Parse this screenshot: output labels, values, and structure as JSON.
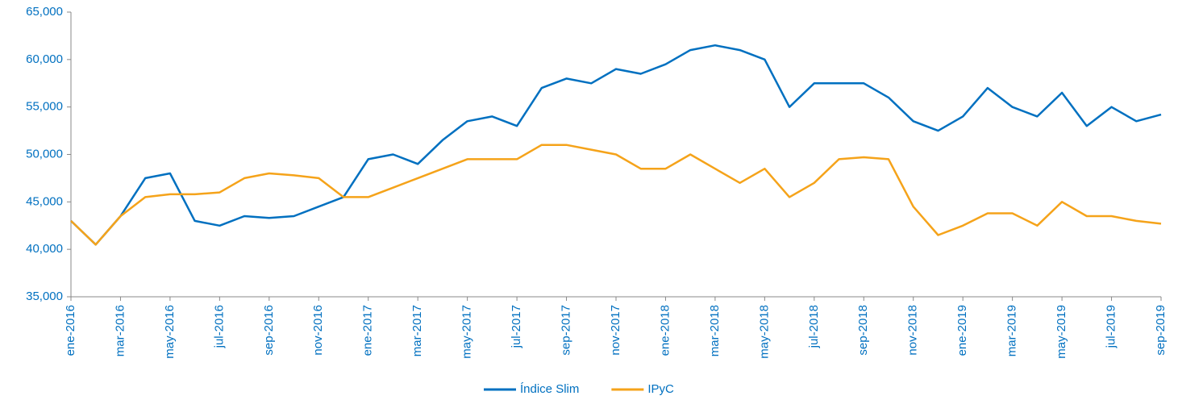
{
  "chart_data": {
    "type": "line",
    "categories": [
      "ene-2016",
      null,
      "mar-2016",
      null,
      "may-2016",
      null,
      "jul-2016",
      null,
      "sep-2016",
      null,
      "nov-2016",
      null,
      "ene-2017",
      null,
      "mar-2017",
      null,
      "may-2017",
      null,
      "jul-2017",
      null,
      "sep-2017",
      null,
      "nov-2017",
      null,
      "ene-2018",
      null,
      "mar-2018",
      null,
      "may-2018",
      null,
      "jul-2018",
      null,
      "sep-2018",
      null,
      "nov-2018",
      null,
      "ene-2019",
      null,
      "mar-2019",
      null,
      "may-2019",
      null,
      "jul-2019",
      null,
      "sep-2019"
    ],
    "series": [
      {
        "name": "Índice Slim",
        "color": "#0070c0",
        "values": [
          43000,
          40500,
          43500,
          47500,
          48000,
          43000,
          42500,
          43500,
          43300,
          43500,
          44500,
          45500,
          49500,
          50000,
          49000,
          51500,
          53500,
          54000,
          53000,
          57000,
          58000,
          57500,
          59000,
          58500,
          59500,
          61000,
          61500,
          61000,
          60000,
          55000,
          57500,
          57500,
          57500,
          56000,
          53500,
          52500,
          54000,
          57000,
          55000,
          54000,
          56500,
          53000,
          55000,
          53500,
          54200
        ]
      },
      {
        "name": "IPyC",
        "color": "#f5a31a",
        "values": [
          43000,
          40500,
          43500,
          45500,
          45800,
          45800,
          46000,
          47500,
          48000,
          47800,
          47500,
          45500,
          45500,
          46500,
          47500,
          48500,
          49500,
          49500,
          49500,
          51000,
          51000,
          50500,
          50000,
          48500,
          48500,
          50000,
          48500,
          47000,
          48500,
          45500,
          47000,
          49500,
          49700,
          49500,
          44500,
          41500,
          42500,
          43800,
          43800,
          42500,
          45000,
          43500,
          43500,
          43000,
          42700
        ]
      }
    ],
    "ylim": [
      35000,
      65000
    ],
    "yticks": [
      {
        "value": 35000,
        "label": "35,000"
      },
      {
        "value": 40000,
        "label": "40,000"
      },
      {
        "value": 45000,
        "label": "45,000"
      },
      {
        "value": 50000,
        "label": "50,000"
      },
      {
        "value": 55000,
        "label": "55,000"
      },
      {
        "value": 60000,
        "label": "60,000"
      },
      {
        "value": 65000,
        "label": "65,000"
      }
    ],
    "grid": false
  }
}
